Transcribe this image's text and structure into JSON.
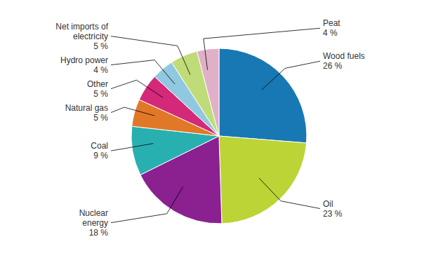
{
  "chart_data": {
    "type": "pie",
    "categories": [
      "Wood fuels",
      "Oil",
      "Nuclear\nenergy",
      "Coal",
      "Natural gas",
      "Other",
      "Hydro power",
      "Net imports of\nelectricity",
      "Peat"
    ],
    "values": [
      26,
      23,
      18,
      9,
      5,
      5,
      4,
      5,
      4
    ],
    "value_labels": [
      "26 %",
      "23 %",
      "18 %",
      "9 %",
      "5 %",
      "5 %",
      "4 %",
      "5 %",
      "4 %"
    ],
    "colors": [
      "#1878b4",
      "#bcd435",
      "#8b2090",
      "#28b0b0",
      "#e07828",
      "#d42878",
      "#90c8e0",
      "#c0dc78",
      "#e0b0c8"
    ],
    "data_labels": true
  }
}
